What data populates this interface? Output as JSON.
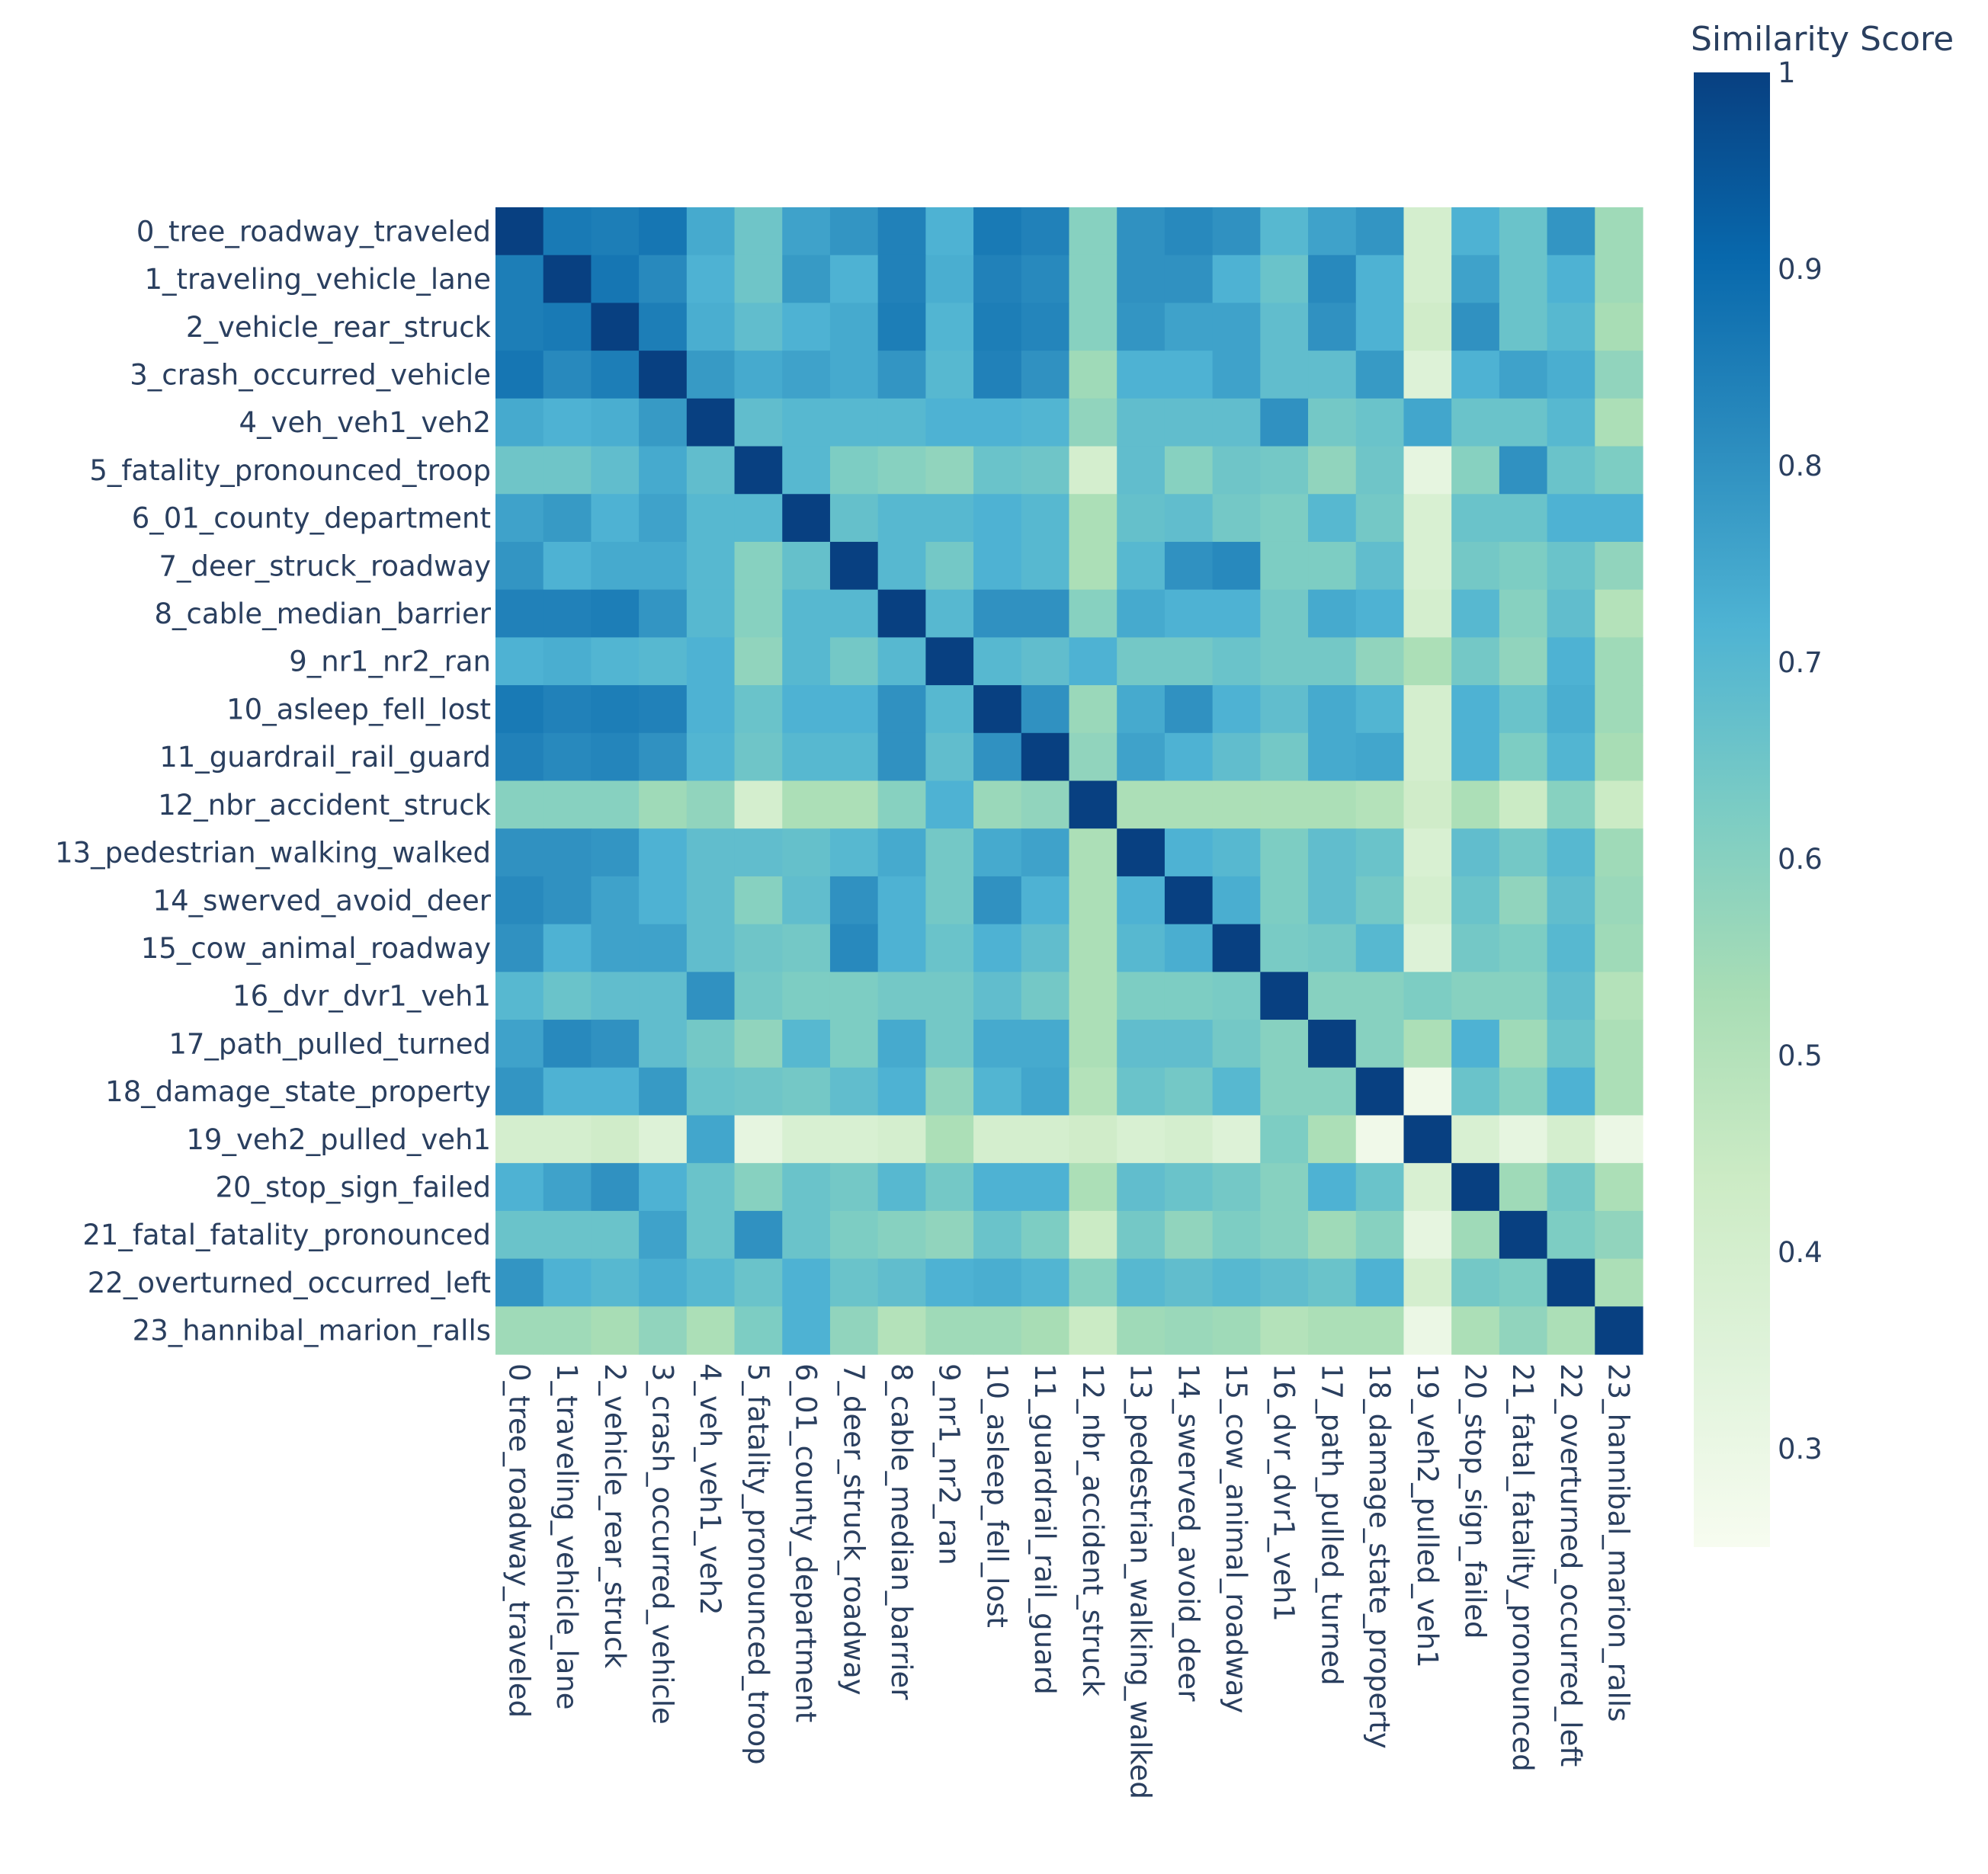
{
  "chart_data": {
    "type": "heatmap",
    "title": "",
    "xlabel": "",
    "ylabel": "",
    "colorbar": {
      "title": "Similarity Score",
      "range": [
        0.25,
        1.0
      ],
      "ticks": [
        0.3,
        0.4,
        0.5,
        0.6,
        0.7,
        0.8,
        0.9,
        1
      ],
      "tick_labels": [
        "0.3",
        "0.4",
        "0.5",
        "0.6",
        "0.7",
        "0.8",
        "0.9",
        "1"
      ],
      "colorscale": [
        [
          0.0,
          "#f7fcf0"
        ],
        [
          0.125,
          "#e0f3db"
        ],
        [
          0.25,
          "#ccebc5"
        ],
        [
          0.375,
          "#a8ddb5"
        ],
        [
          0.5,
          "#7bccc4"
        ],
        [
          0.625,
          "#4eb3d3"
        ],
        [
          0.75,
          "#2b8cbe"
        ],
        [
          0.875,
          "#0868ac"
        ],
        [
          1.0,
          "#084081"
        ]
      ]
    },
    "x_labels": [
      "0_tree_roadway_traveled",
      "1_traveling_vehicle_lane",
      "2_vehicle_rear_struck",
      "3_crash_occurred_vehicle",
      "4_veh_veh1_veh2",
      "5_fatality_pronounced_troop",
      "6_01_county_department",
      "7_deer_struck_roadway",
      "8_cable_median_barrier",
      "9_nr1_nr2_ran",
      "10_asleep_fell_lost",
      "11_guardrail_rail_guard",
      "12_nbr_accident_struck",
      "13_pedestrian_walking_walked",
      "14_swerved_avoid_deer",
      "15_cow_animal_roadway",
      "16_dvr_dvr1_veh1",
      "17_path_pulled_turned",
      "18_damage_state_property",
      "19_veh2_pulled_veh1",
      "20_stop_sign_failed",
      "21_fatal_fatality_pronounced",
      "22_overturned_occurred_left",
      "23_hannibal_marion_ralls"
    ],
    "y_labels": [
      "0_tree_roadway_traveled",
      "1_traveling_vehicle_lane",
      "2_vehicle_rear_struck",
      "3_crash_occurred_vehicle",
      "4_veh_veh1_veh2",
      "5_fatality_pronounced_troop",
      "6_01_county_department",
      "7_deer_struck_roadway",
      "8_cable_median_barrier",
      "9_nr1_nr2_ran",
      "10_asleep_fell_lost",
      "11_guardrail_rail_guard",
      "12_nbr_accident_struck",
      "13_pedestrian_walking_walked",
      "14_swerved_avoid_deer",
      "15_cow_animal_roadway",
      "16_dvr_dvr1_veh1",
      "17_path_pulled_turned",
      "18_damage_state_property",
      "19_veh2_pulled_veh1",
      "20_stop_sign_failed",
      "21_fatal_fatality_pronounced",
      "22_overturned_occurred_left",
      "23_hannibal_marion_ralls"
    ],
    "z": [
      [
        1.0,
        0.86,
        0.85,
        0.87,
        0.74,
        0.65,
        0.76,
        0.79,
        0.84,
        0.72,
        0.86,
        0.84,
        0.6,
        0.8,
        0.82,
        0.8,
        0.7,
        0.76,
        0.79,
        0.4,
        0.72,
        0.66,
        0.79,
        0.55
      ],
      [
        0.85,
        1.0,
        0.87,
        0.82,
        0.72,
        0.65,
        0.78,
        0.72,
        0.84,
        0.73,
        0.84,
        0.82,
        0.6,
        0.8,
        0.8,
        0.72,
        0.66,
        0.82,
        0.72,
        0.4,
        0.76,
        0.66,
        0.72,
        0.55
      ],
      [
        0.85,
        0.86,
        1.0,
        0.85,
        0.73,
        0.68,
        0.72,
        0.74,
        0.85,
        0.71,
        0.85,
        0.83,
        0.6,
        0.79,
        0.76,
        0.76,
        0.68,
        0.8,
        0.72,
        0.42,
        0.8,
        0.66,
        0.7,
        0.53
      ],
      [
        0.87,
        0.82,
        0.85,
        1.0,
        0.78,
        0.74,
        0.76,
        0.74,
        0.79,
        0.7,
        0.84,
        0.8,
        0.55,
        0.72,
        0.72,
        0.76,
        0.68,
        0.68,
        0.78,
        0.36,
        0.72,
        0.76,
        0.73,
        0.58
      ],
      [
        0.74,
        0.72,
        0.73,
        0.78,
        1.0,
        0.68,
        0.7,
        0.7,
        0.7,
        0.72,
        0.72,
        0.71,
        0.58,
        0.68,
        0.68,
        0.68,
        0.8,
        0.64,
        0.66,
        0.75,
        0.66,
        0.66,
        0.7,
        0.52
      ],
      [
        0.65,
        0.65,
        0.68,
        0.74,
        0.68,
        1.0,
        0.7,
        0.62,
        0.6,
        0.58,
        0.66,
        0.65,
        0.4,
        0.68,
        0.6,
        0.65,
        0.64,
        0.58,
        0.65,
        0.32,
        0.6,
        0.8,
        0.66,
        0.62
      ],
      [
        0.76,
        0.78,
        0.72,
        0.76,
        0.7,
        0.7,
        1.0,
        0.67,
        0.7,
        0.7,
        0.72,
        0.7,
        0.52,
        0.67,
        0.68,
        0.64,
        0.62,
        0.7,
        0.64,
        0.38,
        0.66,
        0.66,
        0.72,
        0.72
      ],
      [
        0.79,
        0.72,
        0.74,
        0.74,
        0.7,
        0.6,
        0.67,
        1.0,
        0.7,
        0.64,
        0.72,
        0.7,
        0.52,
        0.7,
        0.8,
        0.82,
        0.62,
        0.62,
        0.68,
        0.38,
        0.64,
        0.62,
        0.66,
        0.58
      ],
      [
        0.84,
        0.84,
        0.85,
        0.79,
        0.7,
        0.6,
        0.7,
        0.7,
        1.0,
        0.7,
        0.8,
        0.8,
        0.6,
        0.74,
        0.72,
        0.72,
        0.64,
        0.74,
        0.72,
        0.4,
        0.7,
        0.6,
        0.68,
        0.5
      ],
      [
        0.72,
        0.73,
        0.71,
        0.7,
        0.72,
        0.58,
        0.7,
        0.64,
        0.7,
        1.0,
        0.7,
        0.68,
        0.72,
        0.64,
        0.64,
        0.66,
        0.64,
        0.64,
        0.58,
        0.52,
        0.64,
        0.58,
        0.72,
        0.55
      ],
      [
        0.86,
        0.84,
        0.85,
        0.84,
        0.72,
        0.66,
        0.72,
        0.72,
        0.8,
        0.7,
        1.0,
        0.8,
        0.56,
        0.74,
        0.8,
        0.72,
        0.68,
        0.74,
        0.71,
        0.4,
        0.72,
        0.66,
        0.73,
        0.55
      ],
      [
        0.84,
        0.82,
        0.83,
        0.8,
        0.71,
        0.65,
        0.7,
        0.7,
        0.8,
        0.68,
        0.8,
        1.0,
        0.58,
        0.76,
        0.72,
        0.68,
        0.64,
        0.74,
        0.75,
        0.4,
        0.72,
        0.62,
        0.71,
        0.53
      ],
      [
        0.6,
        0.6,
        0.6,
        0.55,
        0.58,
        0.4,
        0.52,
        0.52,
        0.6,
        0.72,
        0.56,
        0.58,
        1.0,
        0.52,
        0.52,
        0.52,
        0.52,
        0.52,
        0.5,
        0.42,
        0.52,
        0.44,
        0.6,
        0.44
      ],
      [
        0.8,
        0.8,
        0.79,
        0.72,
        0.68,
        0.68,
        0.67,
        0.7,
        0.74,
        0.64,
        0.74,
        0.76,
        0.52,
        1.0,
        0.72,
        0.7,
        0.62,
        0.68,
        0.66,
        0.38,
        0.68,
        0.64,
        0.7,
        0.55
      ],
      [
        0.82,
        0.8,
        0.76,
        0.72,
        0.68,
        0.6,
        0.68,
        0.8,
        0.72,
        0.64,
        0.8,
        0.72,
        0.52,
        0.72,
        1.0,
        0.73,
        0.62,
        0.68,
        0.64,
        0.4,
        0.66,
        0.58,
        0.68,
        0.56
      ],
      [
        0.8,
        0.72,
        0.76,
        0.76,
        0.68,
        0.65,
        0.64,
        0.82,
        0.72,
        0.66,
        0.72,
        0.68,
        0.52,
        0.7,
        0.73,
        1.0,
        0.63,
        0.64,
        0.7,
        0.36,
        0.64,
        0.62,
        0.7,
        0.55
      ],
      [
        0.7,
        0.66,
        0.68,
        0.68,
        0.8,
        0.64,
        0.62,
        0.62,
        0.64,
        0.64,
        0.68,
        0.64,
        0.52,
        0.62,
        0.62,
        0.63,
        1.0,
        0.6,
        0.6,
        0.62,
        0.6,
        0.6,
        0.68,
        0.5
      ],
      [
        0.76,
        0.82,
        0.8,
        0.68,
        0.64,
        0.58,
        0.7,
        0.62,
        0.74,
        0.64,
        0.74,
        0.74,
        0.52,
        0.68,
        0.68,
        0.64,
        0.6,
        1.0,
        0.6,
        0.52,
        0.72,
        0.55,
        0.66,
        0.52
      ],
      [
        0.79,
        0.72,
        0.72,
        0.78,
        0.66,
        0.65,
        0.64,
        0.68,
        0.72,
        0.58,
        0.71,
        0.75,
        0.5,
        0.66,
        0.64,
        0.7,
        0.6,
        0.6,
        1.0,
        0.28,
        0.66,
        0.6,
        0.72,
        0.52
      ],
      [
        0.4,
        0.4,
        0.42,
        0.36,
        0.75,
        0.32,
        0.38,
        0.38,
        0.4,
        0.52,
        0.4,
        0.4,
        0.42,
        0.38,
        0.4,
        0.36,
        0.62,
        0.52,
        0.28,
        1.0,
        0.38,
        0.32,
        0.4,
        0.3
      ],
      [
        0.72,
        0.76,
        0.8,
        0.72,
        0.66,
        0.6,
        0.66,
        0.64,
        0.7,
        0.64,
        0.72,
        0.72,
        0.52,
        0.68,
        0.66,
        0.64,
        0.6,
        0.72,
        0.66,
        0.38,
        1.0,
        0.55,
        0.64,
        0.52
      ],
      [
        0.66,
        0.66,
        0.66,
        0.76,
        0.66,
        0.8,
        0.66,
        0.62,
        0.6,
        0.58,
        0.66,
        0.62,
        0.44,
        0.64,
        0.58,
        0.62,
        0.6,
        0.55,
        0.6,
        0.32,
        0.55,
        1.0,
        0.62,
        0.58
      ],
      [
        0.79,
        0.72,
        0.7,
        0.73,
        0.7,
        0.66,
        0.72,
        0.66,
        0.68,
        0.72,
        0.73,
        0.71,
        0.6,
        0.7,
        0.68,
        0.7,
        0.68,
        0.66,
        0.72,
        0.4,
        0.64,
        0.62,
        1.0,
        0.52
      ],
      [
        0.55,
        0.55,
        0.53,
        0.58,
        0.52,
        0.62,
        0.72,
        0.58,
        0.5,
        0.55,
        0.55,
        0.53,
        0.44,
        0.55,
        0.56,
        0.55,
        0.5,
        0.52,
        0.52,
        0.3,
        0.52,
        0.58,
        0.52,
        1.0
      ]
    ]
  }
}
